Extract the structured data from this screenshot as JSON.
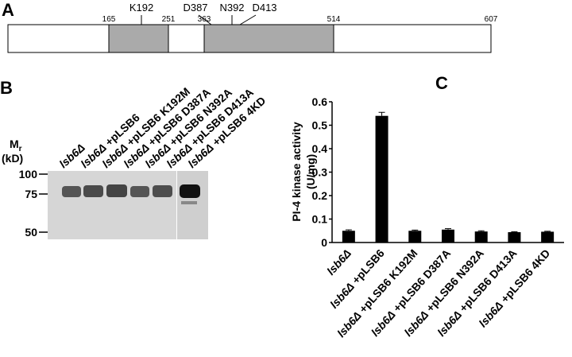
{
  "panel_a": {
    "label": "A",
    "ticks": [
      165,
      251,
      363,
      514,
      607
    ],
    "mutations": [
      "K192",
      "D387",
      "N392",
      "D413"
    ]
  },
  "panel_b": {
    "label": "B",
    "lanes": [
      "lsb6Δ",
      "lsb6Δ +pLSB6",
      "lsb6Δ +pLSB6 K192M",
      "lsb6Δ +pLSB6 D387A",
      "lsb6Δ +pLSB6 N392A",
      "lsb6Δ +pLSB6 D413A",
      "lsb6Δ +pLSB6 4KD"
    ],
    "mr_label": "M",
    "mr_sub": "r",
    "mr_unit": "(kD)",
    "markers": [
      100,
      75,
      50
    ]
  },
  "chart_data": {
    "type": "bar",
    "panel_label": "C",
    "ylabel": [
      "PI-4 kinase activity",
      "(U/mg)"
    ],
    "categories": [
      "lsb6Δ",
      "lsb6Δ +pLSB6",
      "lsb6Δ +pLSB6 K192M",
      "lsb6Δ +pLSB6 D387A",
      "lsb6Δ +pLSB6 N392A",
      "lsb6Δ +pLSB6 D413A",
      "lsb6Δ +pLSB6 4KD"
    ],
    "values": [
      0.05,
      0.54,
      0.05,
      0.055,
      0.047,
      0.044,
      0.046
    ],
    "errors": [
      0.004,
      0.015,
      0.003,
      0.004,
      0.003,
      0.002,
      0.002
    ],
    "color": "#000000",
    "ylim": [
      0,
      0.6
    ],
    "yticks": [
      0,
      0.1,
      0.2,
      0.3,
      0.4,
      0.5,
      0.6
    ],
    "grid": false
  }
}
